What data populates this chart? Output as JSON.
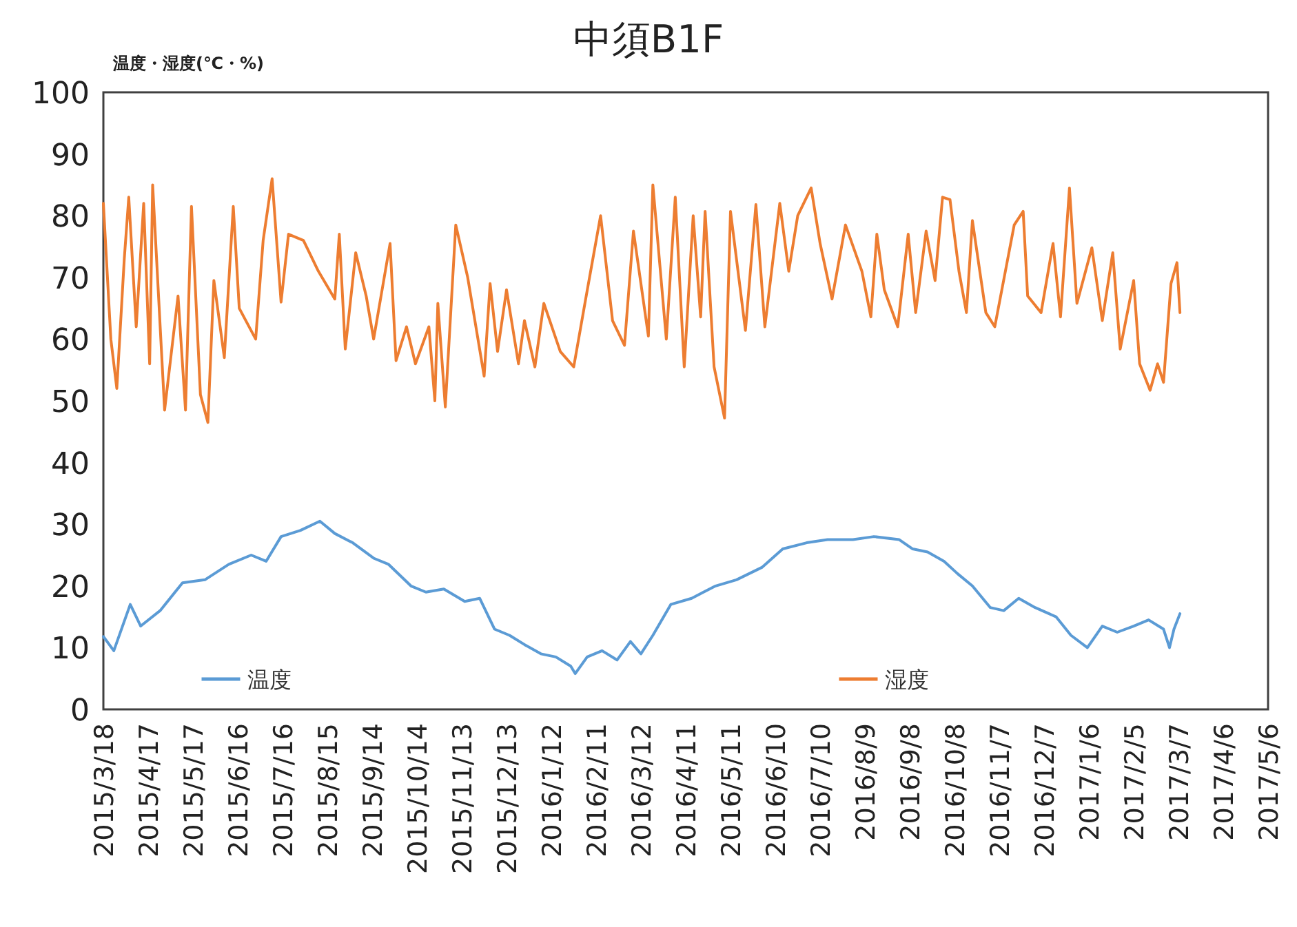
{
  "chart_data": {
    "type": "line",
    "title": "中須B1F",
    "ylabel": "温度・湿度(℃・%)",
    "legend": "bottom",
    "xlim": [
      "2015-03-18",
      "2017-05-06"
    ],
    "ylim": [
      0,
      100
    ],
    "yticks": [
      0,
      10,
      20,
      30,
      40,
      50,
      60,
      70,
      80,
      90,
      100
    ],
    "xticks": [
      {
        "value": "2015-03-18",
        "label": "2015/3/18"
      },
      {
        "value": "2015-04-17",
        "label": "2015/4/17"
      },
      {
        "value": "2015-05-17",
        "label": "2015/5/17"
      },
      {
        "value": "2015-06-16",
        "label": "2015/6/16"
      },
      {
        "value": "2015-07-16",
        "label": "2015/7/16"
      },
      {
        "value": "2015-08-15",
        "label": "2015/8/15"
      },
      {
        "value": "2015-09-14",
        "label": "2015/9/14"
      },
      {
        "value": "2015-10-14",
        "label": "2015/10/14"
      },
      {
        "value": "2015-11-13",
        "label": "2015/11/13"
      },
      {
        "value": "2015-12-13",
        "label": "2015/12/13"
      },
      {
        "value": "2016-01-12",
        "label": "2016/1/12"
      },
      {
        "value": "2016-02-11",
        "label": "2016/2/11"
      },
      {
        "value": "2016-03-12",
        "label": "2016/3/12"
      },
      {
        "value": "2016-04-11",
        "label": "2016/4/11"
      },
      {
        "value": "2016-05-11",
        "label": "2016/5/11"
      },
      {
        "value": "2016-06-10",
        "label": "2016/6/10"
      },
      {
        "value": "2016-07-10",
        "label": "2016/7/10"
      },
      {
        "value": "2016-08-09",
        "label": "2016/8/9"
      },
      {
        "value": "2016-09-08",
        "label": "2016/9/8"
      },
      {
        "value": "2016-10-08",
        "label": "2016/10/8"
      },
      {
        "value": "2016-11-07",
        "label": "2016/11/7"
      },
      {
        "value": "2016-12-07",
        "label": "2016/12/7"
      },
      {
        "value": "2017-01-06",
        "label": "2017/1/6"
      },
      {
        "value": "2017-02-05",
        "label": "2017/2/5"
      },
      {
        "value": "2017-03-07",
        "label": "2017/3/7"
      },
      {
        "value": "2017-04-06",
        "label": "2017/4/6"
      },
      {
        "value": "2017-05-06",
        "label": "2017/5/6"
      }
    ],
    "series": [
      {
        "name": "温度",
        "color": "#5b9bd5",
        "x": [
          "2015-03-18",
          "2015-03-25",
          "2015-04-05",
          "2015-04-12",
          "2015-04-25",
          "2015-05-10",
          "2015-05-25",
          "2015-06-10",
          "2015-06-25",
          "2015-07-05",
          "2015-07-15",
          "2015-07-28",
          "2015-08-10",
          "2015-08-20",
          "2015-09-01",
          "2015-09-15",
          "2015-09-25",
          "2015-10-10",
          "2015-10-20",
          "2015-11-01",
          "2015-11-15",
          "2015-11-25",
          "2015-12-05",
          "2015-12-15",
          "2015-12-25",
          "2016-01-05",
          "2016-01-15",
          "2016-01-25",
          "2016-01-28",
          "2016-02-05",
          "2016-02-15",
          "2016-02-25",
          "2016-03-05",
          "2016-03-12",
          "2016-03-20",
          "2016-04-01",
          "2016-04-15",
          "2016-05-01",
          "2016-05-15",
          "2016-06-01",
          "2016-06-15",
          "2016-07-01",
          "2016-07-15",
          "2016-08-01",
          "2016-08-15",
          "2016-09-01",
          "2016-09-10",
          "2016-09-20",
          "2016-10-01",
          "2016-10-10",
          "2016-10-20",
          "2016-11-01",
          "2016-11-10",
          "2016-11-20",
          "2016-12-01",
          "2016-12-15",
          "2016-12-25",
          "2017-01-05",
          "2017-01-15",
          "2017-01-25",
          "2017-02-05",
          "2017-02-15",
          "2017-02-25",
          "2017-03-01",
          "2017-03-04",
          "2017-03-08"
        ],
        "values": [
          11.8,
          9.5,
          17,
          13.5,
          16,
          20.5,
          21,
          23.5,
          25,
          24,
          28,
          29,
          30.5,
          28.5,
          27,
          24.5,
          23.5,
          20,
          19,
          19.5,
          17.5,
          18,
          13,
          12,
          10.5,
          9,
          8.5,
          7,
          5.8,
          8.5,
          9.5,
          8,
          11,
          9,
          12,
          17,
          18,
          20,
          21,
          23,
          26,
          27,
          27.5,
          27.5,
          28,
          27.5,
          26,
          25.5,
          24,
          22,
          20,
          16.5,
          16,
          18,
          16.5,
          15,
          12,
          10,
          13.5,
          12.5,
          13.5,
          14.5,
          13,
          10,
          13,
          15.5
        ]
      },
      {
        "name": "湿度",
        "color": "#ed7d31",
        "x": [
          "2015-03-18",
          "2015-03-23",
          "2015-03-27",
          "2015-04-01",
          "2015-04-04",
          "2015-04-09",
          "2015-04-14",
          "2015-04-18",
          "2015-04-20",
          "2015-04-28",
          "2015-05-07",
          "2015-05-12",
          "2015-05-16",
          "2015-05-22",
          "2015-05-27",
          "2015-05-31",
          "2015-06-07",
          "2015-06-13",
          "2015-06-17",
          "2015-06-28",
          "2015-07-03",
          "2015-07-09",
          "2015-07-15",
          "2015-07-20",
          "2015-07-30",
          "2015-08-09",
          "2015-08-20",
          "2015-08-23",
          "2015-08-27",
          "2015-09-03",
          "2015-09-10",
          "2015-09-15",
          "2015-09-26",
          "2015-09-30",
          "2015-10-07",
          "2015-10-13",
          "2015-10-22",
          "2015-10-26",
          "2015-10-28",
          "2015-11-02",
          "2015-11-09",
          "2015-11-17",
          "2015-11-28",
          "2015-12-02",
          "2015-12-07",
          "2015-12-13",
          "2015-12-21",
          "2015-12-25",
          "2016-01-01",
          "2016-01-07",
          "2016-01-18",
          "2016-01-27",
          "2016-02-04",
          "2016-02-14",
          "2016-02-22",
          "2016-03-01",
          "2016-03-07",
          "2016-03-17",
          "2016-03-20",
          "2016-03-29",
          "2016-04-04",
          "2016-04-10",
          "2016-04-16",
          "2016-04-21",
          "2016-04-24",
          "2016-04-30",
          "2016-05-07",
          "2016-05-11",
          "2016-05-21",
          "2016-05-28",
          "2016-06-03",
          "2016-06-13",
          "2016-06-19",
          "2016-06-25",
          "2016-07-04",
          "2016-07-10",
          "2016-07-18",
          "2016-07-27",
          "2016-08-07",
          "2016-08-13",
          "2016-08-17",
          "2016-08-22",
          "2016-08-31",
          "2016-09-07",
          "2016-09-12",
          "2016-09-19",
          "2016-09-25",
          "2016-09-30",
          "2016-10-05",
          "2016-10-11",
          "2016-10-16",
          "2016-10-20",
          "2016-10-29",
          "2016-11-04",
          "2016-11-17",
          "2016-11-23",
          "2016-11-26",
          "2016-12-05",
          "2016-12-13",
          "2016-12-18",
          "2016-12-24",
          "2016-12-29",
          "2017-01-08",
          "2017-01-15",
          "2017-01-22",
          "2017-01-27",
          "2017-02-05",
          "2017-02-09",
          "2017-02-16",
          "2017-02-21",
          "2017-02-25",
          "2017-03-02",
          "2017-03-06",
          "2017-03-08"
        ],
        "values": [
          82,
          60,
          52,
          73,
          83,
          62,
          82,
          56,
          85,
          48.5,
          67,
          48.5,
          81.5,
          51,
          46.5,
          69.5,
          57,
          81.5,
          65,
          60,
          76,
          86,
          66,
          77,
          76,
          71,
          66.5,
          77,
          58.4,
          74,
          67,
          60,
          75.5,
          56.5,
          62,
          56,
          62,
          50,
          65.8,
          49,
          78.5,
          70,
          54,
          69,
          58,
          68,
          56,
          63,
          55.5,
          65.8,
          58,
          55.5,
          66.5,
          80,
          63,
          59,
          77.5,
          60.5,
          85,
          60,
          83,
          55.5,
          80,
          63.6,
          80.7,
          55.5,
          47.2,
          80.7,
          61.4,
          81.8,
          62,
          82,
          71,
          80,
          84.5,
          75.5,
          66.5,
          78.5,
          71,
          63.6,
          77,
          68,
          62,
          77,
          64.3,
          77.5,
          69.5,
          83,
          82.6,
          71,
          64.3,
          79.2,
          64.3,
          62,
          78.5,
          80.7,
          67,
          64.3,
          75.5,
          63.6,
          84.5,
          65.8,
          74.8,
          63,
          74,
          58.4,
          69.5,
          56,
          51.7,
          56,
          53,
          69,
          72.4,
          64.3
        ]
      }
    ]
  }
}
